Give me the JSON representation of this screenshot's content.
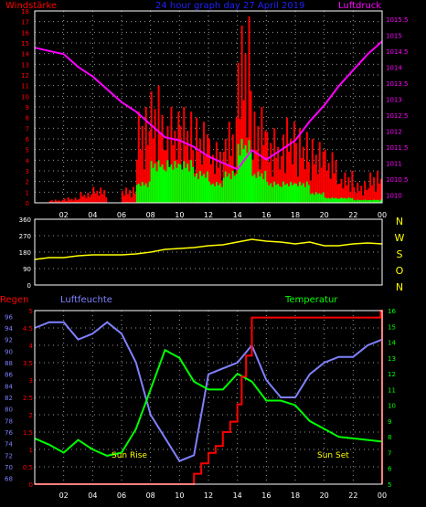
{
  "colors": {
    "background": "#000000",
    "axis_frame": "#ffffff",
    "grid": "#9a9a9a",
    "tick_label": "#ffffff",
    "wind_axis": "#ff0000",
    "pressure_axis": "#ff00ff",
    "title": "#2020ff",
    "gust": "#ff0000",
    "wind_mean": "#00ff00",
    "pressure": "#ff00ff",
    "direction": "#ffff00",
    "compass": "#ffff00",
    "rain": "#ff0000",
    "humidity": "#8080ff",
    "temperature": "#00ff00",
    "humidity_axis": "#8080ff",
    "rain_axis": "#ff0000",
    "temperature_axis": "#00ff00",
    "sun_label": "#ffff00"
  },
  "chart_data": [
    {
      "type": "bar",
      "title": "24 hour graph day  27 April 2019",
      "ylabel_left": "Windstärke",
      "ylabel_right": "Luftdruck",
      "x_ticks": [
        "02",
        "04",
        "06",
        "08",
        "10",
        "12",
        "14",
        "16",
        "18",
        "20",
        "22",
        "00"
      ],
      "y_left_ticks": [
        "0",
        "1",
        "2",
        "3",
        "4",
        "5",
        "6",
        "7",
        "8",
        "9",
        "10",
        "11",
        "12",
        "13",
        "14",
        "15",
        "16",
        "17",
        "18"
      ],
      "y_right_ticks": [
        "1010",
        "1010.5",
        "1011",
        "1011.5",
        "1012",
        "1012.5",
        "1013",
        "1013.5",
        "1014",
        "1014.5",
        "1015",
        "1015.5"
      ],
      "xlim": [
        0,
        24
      ],
      "ylim_left": [
        0,
        18
      ],
      "ylim_right": [
        1009.75,
        1015.75
      ],
      "series": [
        {
          "kind": "bars",
          "values_hourly_gust": [
            0,
            0.3,
            0.5,
            1,
            1.5,
            0,
            1.5,
            9,
            11,
            9,
            9,
            8,
            6,
            8,
            17.5,
            9,
            7,
            8,
            7,
            6,
            5,
            3,
            2,
            3
          ]
        },
        {
          "kind": "bars",
          "values_hourly_mean": [
            0,
            0,
            0,
            0,
            0,
            0,
            0,
            2,
            4,
            4,
            4,
            3,
            2,
            3,
            6,
            3,
            2,
            2,
            2,
            1,
            0.5,
            0.5,
            0.3,
            0.3
          ]
        },
        {
          "kind": "line",
          "x": [
            0,
            1,
            2,
            3,
            4,
            5,
            6,
            7,
            8,
            9,
            10,
            11,
            12,
            13,
            14,
            15,
            16,
            17,
            18,
            19,
            20,
            21,
            22,
            23,
            24
          ],
          "y": [
            1014.6,
            1014.5,
            1014.4,
            1014.0,
            1013.7,
            1013.3,
            1012.9,
            1012.6,
            1012.2,
            1011.8,
            1011.7,
            1011.5,
            1011.2,
            1011.0,
            1010.8,
            1011.4,
            1011.1,
            1011.4,
            1011.7,
            1012.3,
            1012.8,
            1013.4,
            1013.9,
            1014.4,
            1014.8
          ]
        }
      ]
    },
    {
      "type": "line",
      "compass_labels": [
        "N",
        "W",
        "S",
        "O",
        "N"
      ],
      "y_ticks": [
        "0",
        "90",
        "180",
        "270",
        "360"
      ],
      "x_ticks": [
        "02",
        "04",
        "06",
        "08",
        "10",
        "12",
        "14",
        "16",
        "18",
        "20",
        "22",
        "00"
      ],
      "xlim": [
        0,
        24
      ],
      "ylim": [
        0,
        360
      ],
      "x": [
        0,
        1,
        2,
        3,
        4,
        5,
        6,
        7,
        8,
        9,
        10,
        11,
        12,
        13,
        14,
        15,
        16,
        17,
        18,
        19,
        20,
        21,
        22,
        23,
        24
      ],
      "values": [
        140,
        150,
        150,
        160,
        165,
        165,
        165,
        170,
        180,
        195,
        200,
        205,
        215,
        220,
        235,
        250,
        240,
        235,
        225,
        235,
        215,
        215,
        225,
        230,
        225
      ]
    },
    {
      "type": "line",
      "label_rain": "Regen",
      "label_humidity": "Luftfeuchte",
      "label_temperature": "Temperatur",
      "annotations": [
        "Sun Rise",
        "Sun Set"
      ],
      "x_ticks": [
        "02",
        "04",
        "06",
        "08",
        "10",
        "12",
        "14",
        "16",
        "18",
        "20",
        "22",
        "00"
      ],
      "humidity_ticks": [
        "68",
        "70",
        "72",
        "74",
        "76",
        "78",
        "80",
        "82",
        "84",
        "86",
        "88",
        "90",
        "92",
        "94",
        "96"
      ],
      "rain_ticks": [
        "0",
        "0.5",
        "1",
        "1.5",
        "2",
        "2.5",
        "3",
        "3.5",
        "4",
        "4.5",
        "5"
      ],
      "temperature_ticks": [
        "5",
        "6",
        "7",
        "8",
        "9",
        "10",
        "11",
        "12",
        "13",
        "14",
        "15",
        "16"
      ],
      "xlim": [
        0,
        24
      ],
      "ylim_humidity": [
        67,
        97
      ],
      "ylim_rain": [
        0,
        5
      ],
      "ylim_temperature": [
        5,
        16
      ],
      "series": [
        {
          "name": "Luftfeuchte",
          "x": [
            0,
            1,
            2,
            3,
            4,
            5,
            6,
            7,
            8,
            9,
            10,
            11,
            12,
            13,
            14,
            15,
            16,
            17,
            18,
            19,
            20,
            21,
            22,
            23,
            24
          ],
          "y": [
            94,
            95,
            95,
            92,
            93,
            95,
            93,
            88,
            79,
            75,
            71,
            72,
            86,
            87,
            88,
            91,
            85,
            82,
            82,
            86,
            88,
            89,
            89,
            91,
            92
          ]
        },
        {
          "name": "Regen",
          "x": [
            0,
            1,
            2,
            3,
            4,
            5,
            6,
            7,
            8,
            9,
            10,
            10.5,
            11,
            11.5,
            12,
            12.5,
            13,
            13.5,
            14,
            14.3,
            14.6,
            15,
            16,
            17,
            18,
            19,
            20,
            21,
            22,
            23,
            23.9,
            24
          ],
          "y": [
            0,
            0,
            0,
            0,
            0,
            0,
            0,
            0,
            0,
            0,
            0,
            0,
            0.3,
            0.6,
            0.9,
            1.1,
            1.5,
            1.8,
            2.3,
            3.1,
            3.7,
            4.8,
            4.8,
            4.8,
            4.8,
            4.8,
            4.8,
            4.8,
            4.8,
            4.8,
            5.0,
            0
          ]
        },
        {
          "name": "Temperatur",
          "x": [
            0,
            1,
            2,
            3,
            4,
            5,
            6,
            7,
            8,
            9,
            10,
            11,
            12,
            13,
            14,
            15,
            16,
            17,
            18,
            19,
            20,
            21,
            22,
            23,
            24
          ],
          "y": [
            7.9,
            7.5,
            7.0,
            7.8,
            7.2,
            6.8,
            7.0,
            8.5,
            11.0,
            13.5,
            13.0,
            11.5,
            11.0,
            11.0,
            12.0,
            11.5,
            10.3,
            10.3,
            10.0,
            9.0,
            8.5,
            8.0,
            7.9,
            7.8,
            7.7
          ]
        }
      ]
    }
  ]
}
